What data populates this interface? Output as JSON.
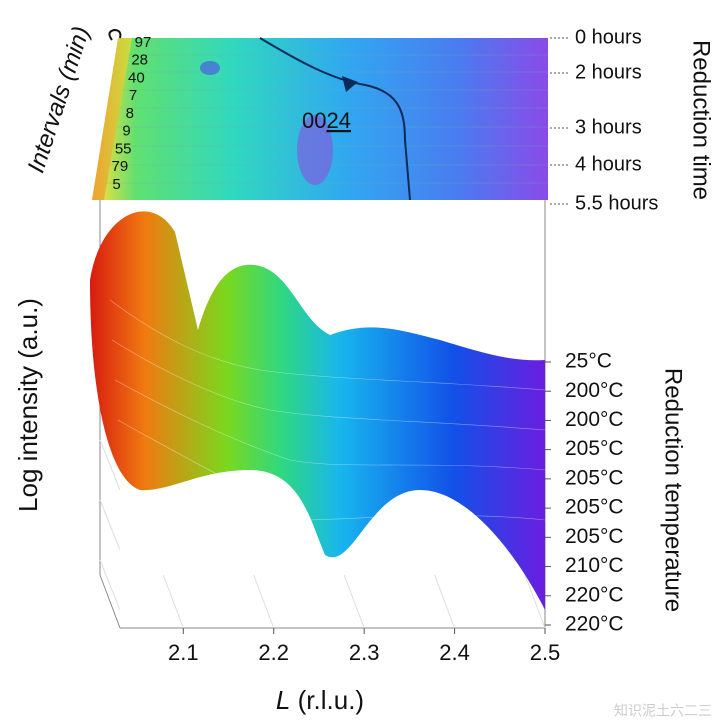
{
  "chart_data": {
    "type": "surface",
    "x_label": {
      "symbol": "L",
      "unit": "(r.l.u.)"
    },
    "y_label": "Log intensity (a.u.)",
    "xlim": [
      2.03,
      2.5
    ],
    "xticks": [
      2.1,
      2.2,
      2.3,
      2.4,
      2.5
    ],
    "temperature_label": "Reduction temperature",
    "temperatures": [
      "25°C",
      "200°C",
      "200°C",
      "205°C",
      "205°C",
      "205°C",
      "205°C",
      "210°C",
      "220°C",
      "220°C"
    ],
    "time_label": "Reduction time",
    "times": [
      "0 hours",
      "2 hours",
      "3 hours",
      "4 hours",
      "5.5 hours"
    ],
    "intervals_label": "Intervals (min)",
    "intervals": [
      97,
      28,
      40,
      7,
      8,
      9,
      55,
      79,
      5
    ],
    "peak_label": {
      "prefix": "00",
      "underlined": "24"
    },
    "watermark": "知识泥土六二三"
  }
}
